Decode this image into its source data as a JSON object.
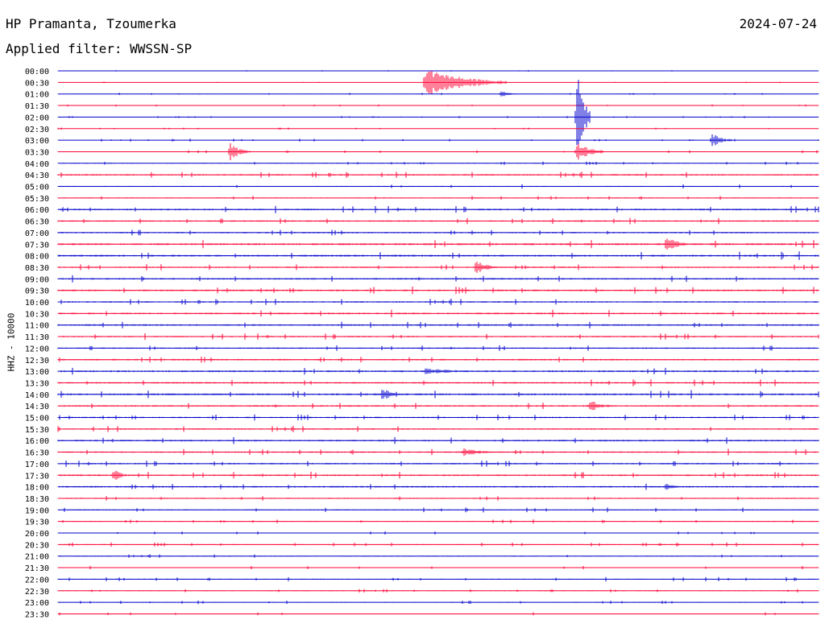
{
  "header": {
    "station": "HP Pramanta, Tzoumerka",
    "filter": "Applied filter: WWSSN-SP",
    "date": "2024-07-24"
  },
  "chart_data": {
    "type": "line",
    "title": "HP Pramanta, Tzoumerka",
    "subtitle": "Applied filter: WWSSN-SP",
    "ylabel": "HHZ - 10000",
    "date": "2024-07-24",
    "colors": {
      "even_trace": "#0000cc",
      "odd_trace": "#ff0033"
    },
    "row_labels": [
      "00:00",
      "00:30",
      "01:00",
      "01:30",
      "02:00",
      "02:30",
      "03:00",
      "03:30",
      "04:00",
      "04:30",
      "05:00",
      "05:30",
      "06:00",
      "06:30",
      "07:00",
      "07:30",
      "08:00",
      "08:30",
      "09:00",
      "09:30",
      "10:00",
      "10:30",
      "11:00",
      "11:30",
      "12:00",
      "12:30",
      "13:00",
      "13:30",
      "14:00",
      "14:30",
      "15:00",
      "15:30",
      "16:00",
      "16:30",
      "17:00",
      "17:30",
      "18:00",
      "18:30",
      "19:00",
      "19:30",
      "20:00",
      "20:30",
      "21:00",
      "21:30",
      "22:00",
      "22:30",
      "23:00",
      "23:30"
    ],
    "trace_noise": [
      0.2,
      0.2,
      0.3,
      0.3,
      0.3,
      0.3,
      0.4,
      0.5,
      0.5,
      0.9,
      0.6,
      0.6,
      1.0,
      0.9,
      0.9,
      1.3,
      1.2,
      0.9,
      1.0,
      1.1,
      0.9,
      1.1,
      1.0,
      0.9,
      0.8,
      1.0,
      1.1,
      1.0,
      1.2,
      1.0,
      0.9,
      0.9,
      1.0,
      0.9,
      0.9,
      1.0,
      1.0,
      0.7,
      0.7,
      0.6,
      0.5,
      0.6,
      0.5,
      0.5,
      0.6,
      0.5,
      0.5,
      0.5
    ],
    "events": [
      {
        "row": 1,
        "minute": 14.5,
        "amplitude": 17,
        "duration_min": 3.2
      },
      {
        "row": 2,
        "minute": 17.5,
        "amplitude": 4,
        "duration_min": 0.6
      },
      {
        "row": 4,
        "minute": 20.5,
        "amplitude": 62,
        "duration_min": 0.5
      },
      {
        "row": 6,
        "minute": 25.8,
        "amplitude": 9,
        "duration_min": 0.8
      },
      {
        "row": 7,
        "minute": 6.8,
        "amplitude": 11,
        "duration_min": 0.8
      },
      {
        "row": 7,
        "minute": 20.5,
        "amplitude": 12,
        "duration_min": 1.0
      },
      {
        "row": 15,
        "minute": 24.0,
        "amplitude": 11,
        "duration_min": 0.9
      },
      {
        "row": 17,
        "minute": 16.5,
        "amplitude": 8,
        "duration_min": 1.0
      },
      {
        "row": 26,
        "minute": 14.5,
        "amplitude": 4,
        "duration_min": 2.5
      },
      {
        "row": 28,
        "minute": 12.8,
        "amplitude": 9,
        "duration_min": 0.7
      },
      {
        "row": 29,
        "minute": 21.0,
        "amplitude": 7,
        "duration_min": 1.0
      },
      {
        "row": 33,
        "minute": 16.0,
        "amplitude": 5,
        "duration_min": 1.5
      },
      {
        "row": 35,
        "minute": 2.2,
        "amplitude": 8,
        "duration_min": 0.6
      },
      {
        "row": 36,
        "minute": 24.0,
        "amplitude": 5,
        "duration_min": 0.6
      }
    ]
  }
}
